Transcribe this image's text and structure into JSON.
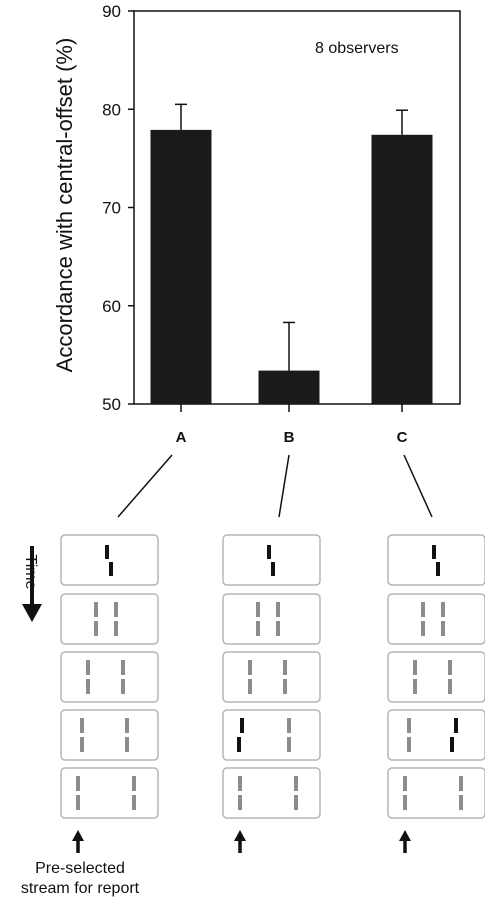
{
  "chart_data": {
    "type": "bar",
    "categories": [
      "A",
      "B",
      "C"
    ],
    "values": [
      77.9,
      53.4,
      77.4
    ],
    "error_upper": [
      80.5,
      58.3,
      79.9
    ],
    "ylabel": "Accordance with central-offset (%)",
    "ylim": [
      50,
      90
    ],
    "yticks": [
      50,
      60,
      70,
      80,
      90
    ],
    "annotation": "8 observers",
    "bar_color": "#1a1a1a",
    "grid": false
  },
  "diagram": {
    "time_label": "Time",
    "caption_lines": [
      "Pre-selected",
      "stream for report"
    ],
    "frame_border_color": "#b5b5b5",
    "gray_line_color": "#8c8c8c",
    "black_line_color": "#111111"
  }
}
